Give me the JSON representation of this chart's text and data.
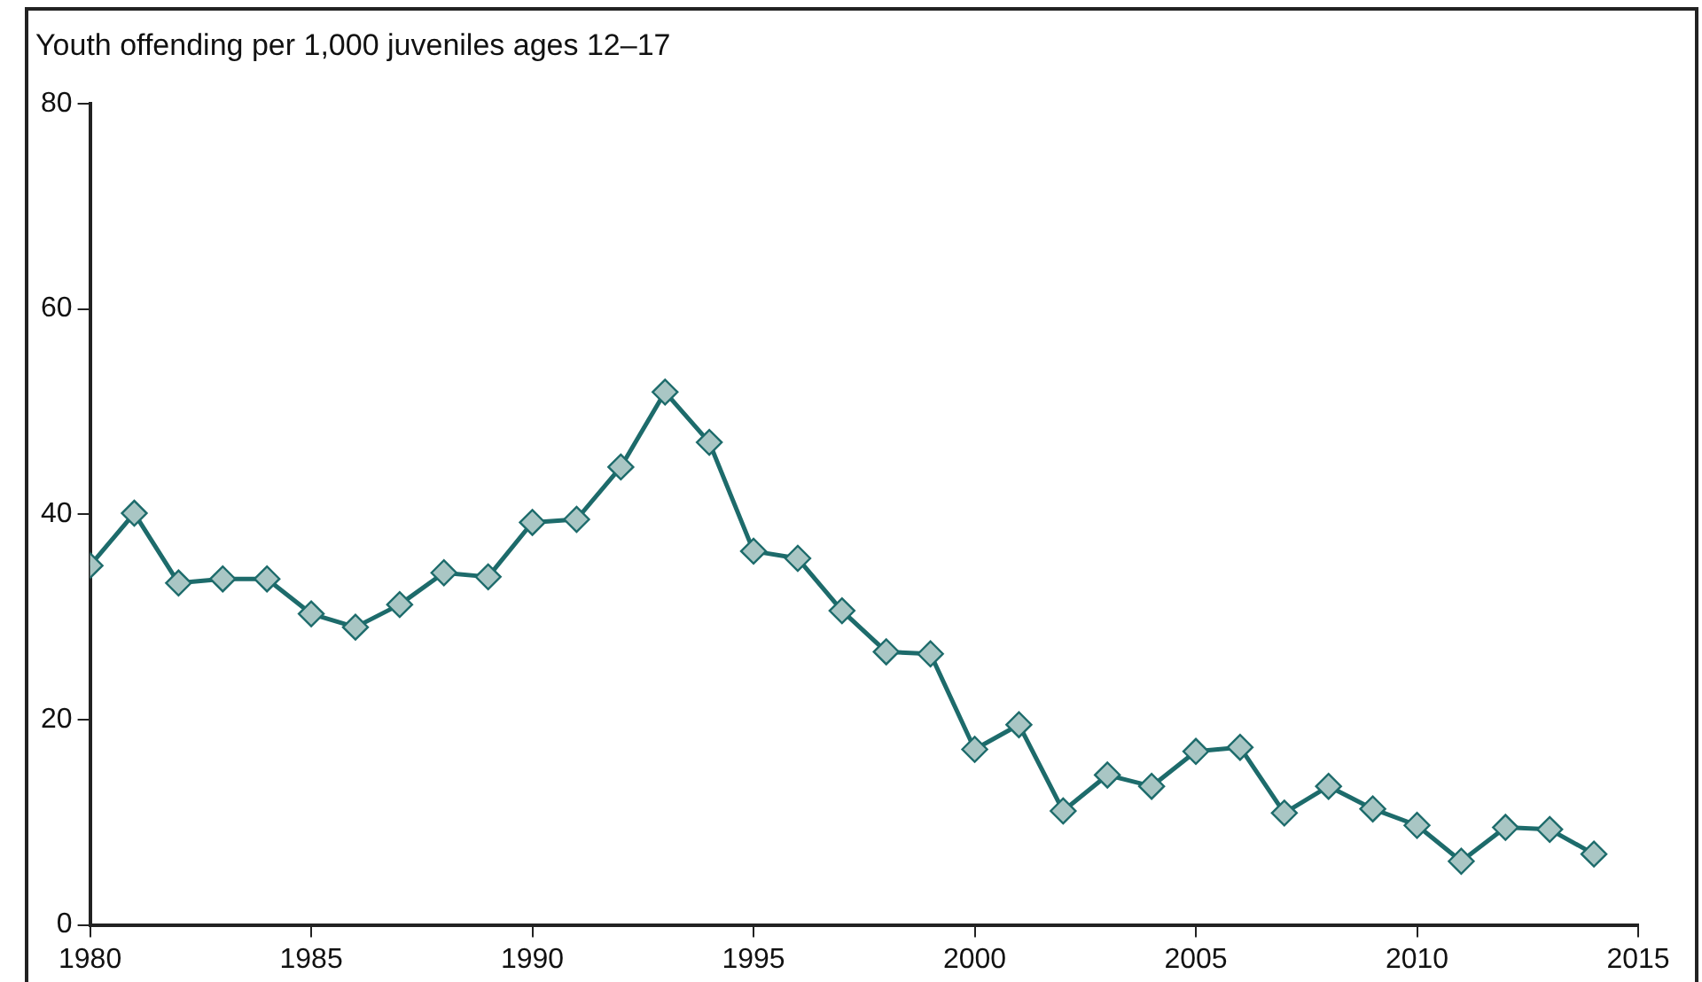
{
  "chart_data": {
    "type": "line",
    "title": "Youth offending per 1,000 juveniles ages 12–17",
    "x": [
      1980,
      1981,
      1982,
      1983,
      1984,
      1985,
      1986,
      1987,
      1988,
      1989,
      1990,
      1991,
      1992,
      1993,
      1994,
      1995,
      1996,
      1997,
      1998,
      1999,
      2000,
      2001,
      2002,
      2003,
      2004,
      2005,
      2006,
      2007,
      2008,
      2009,
      2010,
      2011,
      2012,
      2013,
      2014
    ],
    "series": [
      {
        "color": "#1d6b6b",
        "values": [
          35.0,
          40.1,
          33.3,
          33.7,
          33.7,
          30.3,
          29.0,
          31.2,
          34.3,
          33.9,
          39.2,
          39.5,
          44.6,
          51.9,
          47.0,
          36.4,
          35.7,
          30.6,
          26.6,
          26.4,
          17.1,
          19.5,
          11.1,
          14.6,
          13.5,
          16.9,
          17.3,
          10.9,
          13.5,
          11.3,
          9.7,
          6.2,
          9.5,
          9.3,
          6.9
        ]
      }
    ],
    "xlim": [
      1980,
      2015
    ],
    "xticks": [
      1980,
      1985,
      1990,
      1995,
      2000,
      2005,
      2010,
      2015
    ],
    "ylim": [
      0,
      80
    ],
    "yticks": [
      0,
      20,
      40,
      60,
      80
    ],
    "grid": false,
    "legend": false,
    "marker": "diamond",
    "line_style": "solid"
  }
}
